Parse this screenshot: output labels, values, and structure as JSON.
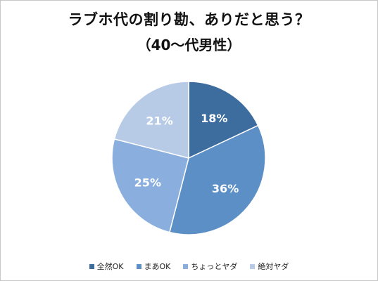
{
  "chart_data": {
    "type": "pie",
    "title": "ラブホ代の割り勘、ありだと思う？",
    "subtitle": "（40～代男性）",
    "categories": [
      "全然OK",
      "まあOK",
      "ちょっとヤダ",
      "絶対ヤダ"
    ],
    "values": [
      18,
      36,
      25,
      21
    ],
    "data_labels": [
      "18%",
      "36%",
      "25%",
      "21%"
    ],
    "colors": [
      "#3d6d9e",
      "#5b8fc6",
      "#8aaede",
      "#b8cbe6"
    ],
    "legend_position": "bottom"
  }
}
